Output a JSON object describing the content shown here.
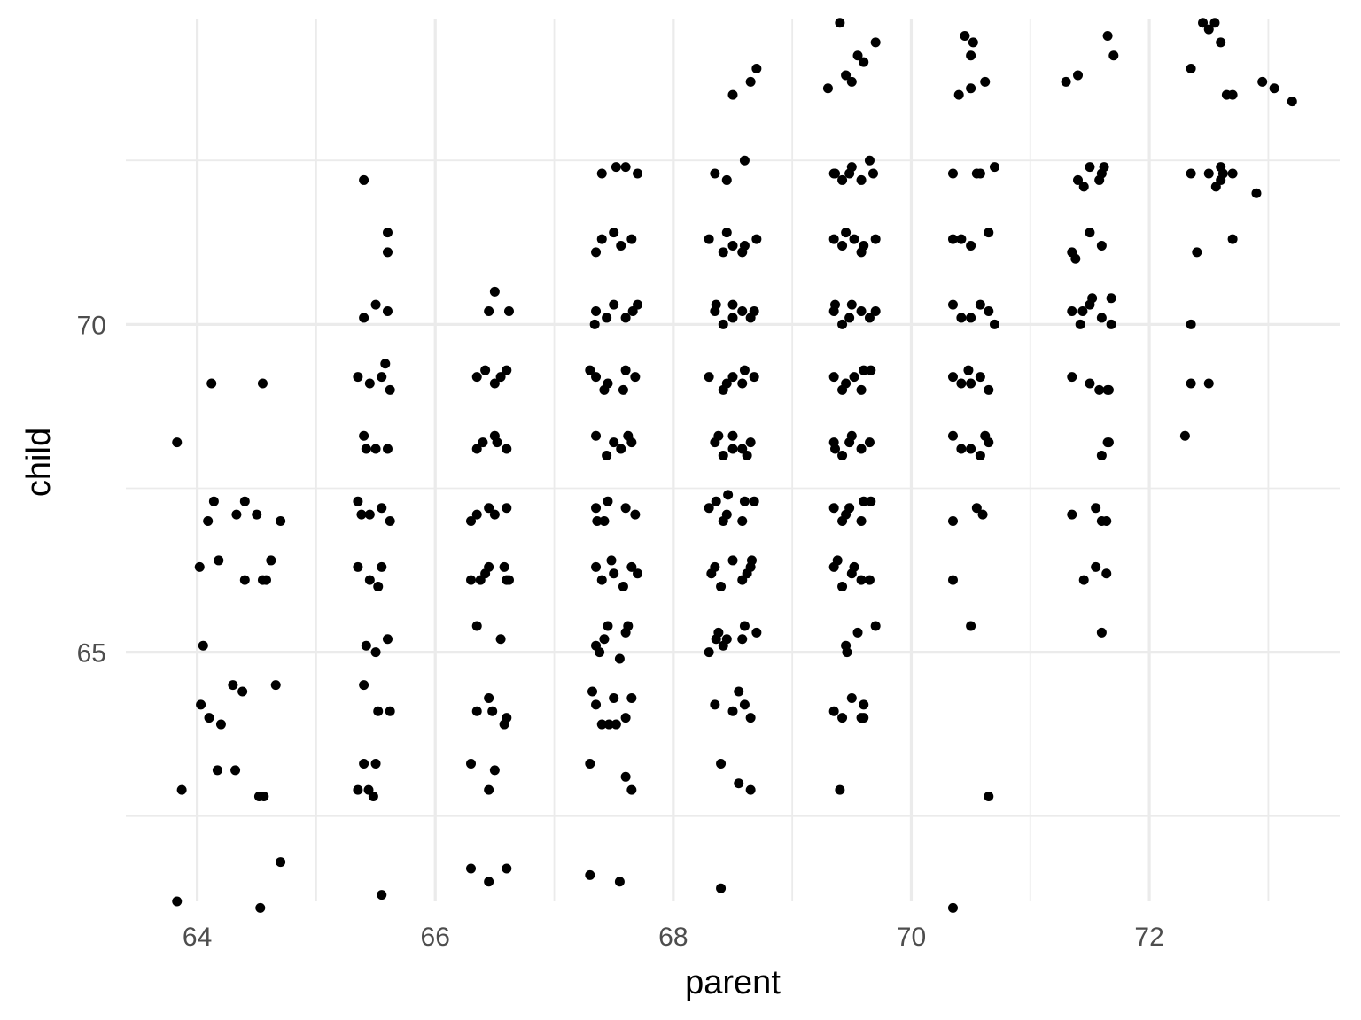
{
  "chart_data": {
    "type": "scatter",
    "title": "",
    "xlabel": "parent",
    "ylabel": "child",
    "xlim": [
      63.4,
      73.6
    ],
    "ylim": [
      61.2,
      74.65
    ],
    "x_ticks": [
      64,
      66,
      68,
      70,
      72
    ],
    "x_tick_labels": [
      "64",
      "66",
      "68",
      "70",
      "72"
    ],
    "x_minor_ticks": [
      65,
      67,
      69,
      71,
      73
    ],
    "y_ticks": [
      65,
      70
    ],
    "y_tick_labels": [
      "65",
      "70"
    ],
    "y_minor_ticks": [
      62.5,
      67.5,
      72.5
    ],
    "grid": true,
    "legend": "none",
    "colors": {
      "point": "#000000",
      "grid": "#ebebeb",
      "background": "#ffffff"
    },
    "points": [
      [
        63.83,
        61.2
      ],
      [
        63.83,
        68.2
      ],
      [
        63.87,
        62.9
      ],
      [
        64.05,
        65.1
      ],
      [
        64.12,
        69.1
      ],
      [
        64.17,
        63.2
      ],
      [
        64.33,
        67.1
      ],
      [
        64.38,
        64.4
      ],
      [
        64.53,
        61.1
      ],
      [
        64.52,
        62.8
      ],
      [
        64.55,
        69.1
      ],
      [
        64.7,
        61.8
      ],
      [
        64.7,
        67.0
      ],
      [
        64.66,
        64.5
      ],
      [
        64.58,
        66.1
      ],
      [
        64.62,
        66.4
      ],
      [
        64.02,
        66.3
      ],
      [
        64.1,
        64.0
      ],
      [
        64.2,
        63.9
      ],
      [
        64.14,
        67.3
      ],
      [
        64.4,
        67.3
      ],
      [
        64.3,
        64.5
      ],
      [
        64.4,
        66.1
      ],
      [
        64.56,
        62.8
      ],
      [
        64.03,
        64.2
      ],
      [
        64.18,
        66.4
      ],
      [
        64.32,
        63.2
      ],
      [
        64.09,
        67.0
      ],
      [
        64.5,
        67.1
      ],
      [
        64.55,
        66.1
      ],
      [
        65.35,
        62.9
      ],
      [
        65.4,
        63.3
      ],
      [
        65.5,
        63.3
      ],
      [
        65.55,
        61.3
      ],
      [
        65.4,
        64.5
      ],
      [
        65.5,
        65.0
      ],
      [
        65.6,
        65.2
      ],
      [
        65.35,
        66.3
      ],
      [
        65.45,
        66.1
      ],
      [
        65.55,
        66.3
      ],
      [
        65.35,
        67.3
      ],
      [
        65.45,
        67.1
      ],
      [
        65.55,
        67.2
      ],
      [
        65.4,
        68.3
      ],
      [
        65.5,
        68.1
      ],
      [
        65.6,
        68.1
      ],
      [
        65.35,
        69.2
      ],
      [
        65.45,
        69.1
      ],
      [
        65.55,
        69.2
      ],
      [
        65.4,
        70.1
      ],
      [
        65.5,
        70.3
      ],
      [
        65.6,
        70.2
      ],
      [
        65.4,
        72.2
      ],
      [
        65.6,
        71.4
      ],
      [
        65.6,
        71.1
      ],
      [
        65.48,
        62.8
      ],
      [
        65.42,
        65.1
      ],
      [
        65.52,
        64.1
      ],
      [
        65.62,
        64.1
      ],
      [
        65.38,
        67.1
      ],
      [
        65.62,
        67.0
      ],
      [
        65.42,
        68.1
      ],
      [
        65.62,
        69.0
      ],
      [
        65.52,
        66.0
      ],
      [
        65.44,
        62.9
      ],
      [
        65.58,
        69.4
      ],
      [
        66.3,
        61.7
      ],
      [
        66.45,
        61.5
      ],
      [
        66.6,
        61.7
      ],
      [
        66.3,
        63.3
      ],
      [
        66.45,
        62.9
      ],
      [
        66.5,
        63.2
      ],
      [
        66.35,
        64.1
      ],
      [
        66.45,
        64.3
      ],
      [
        66.6,
        64.0
      ],
      [
        66.35,
        65.4
      ],
      [
        66.55,
        65.2
      ],
      [
        66.3,
        66.1
      ],
      [
        66.45,
        66.3
      ],
      [
        66.6,
        66.1
      ],
      [
        66.35,
        67.1
      ],
      [
        66.45,
        67.2
      ],
      [
        66.6,
        67.2
      ],
      [
        66.35,
        68.1
      ],
      [
        66.5,
        68.3
      ],
      [
        66.6,
        68.1
      ],
      [
        66.35,
        69.2
      ],
      [
        66.5,
        69.1
      ],
      [
        66.6,
        69.3
      ],
      [
        66.45,
        70.2
      ],
      [
        66.5,
        70.5
      ],
      [
        66.62,
        70.2
      ],
      [
        66.3,
        67.0
      ],
      [
        66.5,
        67.1
      ],
      [
        66.4,
        68.2
      ],
      [
        66.55,
        69.2
      ],
      [
        66.42,
        66.2
      ],
      [
        66.58,
        66.3
      ],
      [
        66.48,
        64.1
      ],
      [
        66.58,
        63.9
      ],
      [
        66.38,
        66.1
      ],
      [
        66.62,
        66.1
      ],
      [
        66.52,
        68.2
      ],
      [
        66.42,
        69.3
      ],
      [
        67.3,
        61.6
      ],
      [
        67.55,
        61.5
      ],
      [
        67.3,
        63.3
      ],
      [
        67.6,
        63.1
      ],
      [
        67.65,
        62.9
      ],
      [
        67.35,
        64.2
      ],
      [
        67.5,
        64.3
      ],
      [
        67.6,
        64.0
      ],
      [
        67.35,
        65.1
      ],
      [
        67.45,
        65.4
      ],
      [
        67.6,
        65.3
      ],
      [
        67.35,
        66.3
      ],
      [
        67.5,
        66.2
      ],
      [
        67.65,
        66.3
      ],
      [
        67.35,
        67.2
      ],
      [
        67.45,
        67.3
      ],
      [
        67.6,
        67.2
      ],
      [
        67.35,
        68.3
      ],
      [
        67.5,
        68.2
      ],
      [
        67.65,
        68.2
      ],
      [
        67.35,
        69.2
      ],
      [
        67.45,
        69.1
      ],
      [
        67.6,
        69.3
      ],
      [
        67.35,
        70.2
      ],
      [
        67.5,
        70.3
      ],
      [
        67.6,
        70.1
      ],
      [
        67.35,
        71.1
      ],
      [
        67.5,
        71.4
      ],
      [
        67.65,
        71.3
      ],
      [
        67.4,
        72.3
      ],
      [
        67.6,
        72.4
      ],
      [
        67.7,
        72.3
      ],
      [
        67.4,
        63.9
      ],
      [
        67.52,
        63.9
      ],
      [
        67.65,
        64.3
      ],
      [
        67.42,
        65.2
      ],
      [
        67.55,
        64.9
      ],
      [
        67.4,
        66.1
      ],
      [
        67.58,
        66.0
      ],
      [
        67.42,
        67.0
      ],
      [
        67.68,
        67.1
      ],
      [
        67.44,
        68.0
      ],
      [
        67.56,
        68.1
      ],
      [
        67.42,
        69.0
      ],
      [
        67.58,
        69.0
      ],
      [
        67.44,
        70.1
      ],
      [
        67.66,
        70.2
      ],
      [
        67.4,
        71.3
      ],
      [
        67.56,
        71.2
      ],
      [
        67.52,
        72.4
      ],
      [
        67.32,
        64.4
      ],
      [
        67.48,
        66.4
      ],
      [
        67.36,
        67.0
      ],
      [
        67.62,
        68.3
      ],
      [
        67.3,
        69.3
      ],
      [
        67.68,
        69.2
      ],
      [
        67.34,
        70.0
      ],
      [
        67.7,
        70.3
      ],
      [
        67.38,
        65.0
      ],
      [
        67.62,
        65.4
      ],
      [
        67.46,
        63.9
      ],
      [
        67.7,
        66.2
      ],
      [
        68.3,
        65.0
      ],
      [
        68.45,
        65.2
      ],
      [
        68.6,
        65.4
      ],
      [
        68.35,
        66.3
      ],
      [
        68.5,
        66.4
      ],
      [
        68.65,
        66.3
      ],
      [
        68.3,
        67.2
      ],
      [
        68.45,
        67.1
      ],
      [
        68.6,
        67.3
      ],
      [
        68.35,
        68.2
      ],
      [
        68.5,
        68.3
      ],
      [
        68.65,
        68.2
      ],
      [
        68.3,
        69.2
      ],
      [
        68.45,
        69.1
      ],
      [
        68.6,
        69.3
      ],
      [
        68.35,
        70.2
      ],
      [
        68.5,
        70.3
      ],
      [
        68.65,
        70.1
      ],
      [
        68.3,
        71.3
      ],
      [
        68.45,
        71.4
      ],
      [
        68.6,
        71.2
      ],
      [
        68.35,
        72.3
      ],
      [
        68.45,
        72.2
      ],
      [
        68.6,
        72.5
      ],
      [
        68.5,
        73.5
      ],
      [
        68.65,
        73.7
      ],
      [
        68.7,
        73.9
      ],
      [
        68.4,
        63.3
      ],
      [
        68.55,
        63.0
      ],
      [
        68.65,
        62.9
      ],
      [
        68.4,
        61.4
      ],
      [
        68.35,
        64.2
      ],
      [
        68.5,
        64.1
      ],
      [
        68.65,
        64.0
      ],
      [
        68.42,
        65.1
      ],
      [
        68.58,
        65.2
      ],
      [
        68.4,
        66.0
      ],
      [
        68.58,
        66.1
      ],
      [
        68.42,
        67.0
      ],
      [
        68.58,
        67.0
      ],
      [
        68.42,
        68.0
      ],
      [
        68.58,
        68.1
      ],
      [
        68.42,
        69.0
      ],
      [
        68.58,
        69.1
      ],
      [
        68.42,
        70.0
      ],
      [
        68.58,
        70.2
      ],
      [
        68.42,
        71.1
      ],
      [
        68.58,
        71.1
      ],
      [
        68.55,
        64.4
      ],
      [
        68.7,
        65.3
      ],
      [
        68.38,
        65.3
      ],
      [
        68.62,
        66.2
      ],
      [
        68.36,
        67.3
      ],
      [
        68.68,
        67.3
      ],
      [
        68.62,
        68.0
      ],
      [
        68.38,
        68.3
      ],
      [
        68.68,
        69.2
      ],
      [
        68.36,
        70.3
      ],
      [
        68.68,
        70.2
      ],
      [
        68.7,
        71.3
      ],
      [
        68.36,
        65.2
      ],
      [
        68.6,
        64.2
      ],
      [
        68.32,
        66.2
      ],
      [
        68.66,
        66.4
      ],
      [
        68.46,
        67.4
      ],
      [
        68.5,
        68.1
      ],
      [
        68.5,
        69.2
      ],
      [
        68.5,
        70.1
      ],
      [
        68.5,
        71.2
      ],
      [
        69.4,
        62.9
      ],
      [
        69.35,
        64.1
      ],
      [
        69.5,
        64.3
      ],
      [
        69.6,
        64.0
      ],
      [
        69.45,
        65.1
      ],
      [
        69.55,
        65.3
      ],
      [
        69.7,
        65.4
      ],
      [
        69.35,
        66.3
      ],
      [
        69.5,
        66.2
      ],
      [
        69.65,
        66.1
      ],
      [
        69.35,
        67.2
      ],
      [
        69.45,
        67.1
      ],
      [
        69.6,
        67.3
      ],
      [
        69.35,
        68.2
      ],
      [
        69.5,
        68.3
      ],
      [
        69.65,
        68.2
      ],
      [
        69.35,
        69.2
      ],
      [
        69.45,
        69.1
      ],
      [
        69.6,
        69.3
      ],
      [
        69.35,
        70.2
      ],
      [
        69.5,
        70.3
      ],
      [
        69.65,
        70.1
      ],
      [
        69.35,
        71.3
      ],
      [
        69.45,
        71.4
      ],
      [
        69.6,
        71.2
      ],
      [
        69.35,
        72.3
      ],
      [
        69.5,
        72.4
      ],
      [
        69.65,
        72.5
      ],
      [
        69.3,
        73.6
      ],
      [
        69.45,
        73.8
      ],
      [
        69.55,
        74.1
      ],
      [
        69.7,
        74.3
      ],
      [
        69.4,
        74.6
      ],
      [
        69.42,
        64.0
      ],
      [
        69.58,
        64.0
      ],
      [
        69.46,
        65.0
      ],
      [
        69.42,
        66.0
      ],
      [
        69.58,
        66.1
      ],
      [
        69.42,
        67.0
      ],
      [
        69.58,
        67.0
      ],
      [
        69.42,
        68.0
      ],
      [
        69.58,
        68.1
      ],
      [
        69.42,
        69.0
      ],
      [
        69.58,
        69.0
      ],
      [
        69.42,
        70.0
      ],
      [
        69.58,
        70.2
      ],
      [
        69.42,
        71.2
      ],
      [
        69.58,
        71.1
      ],
      [
        69.42,
        72.2
      ],
      [
        69.58,
        72.2
      ],
      [
        69.5,
        73.7
      ],
      [
        69.6,
        74.0
      ],
      [
        69.68,
        72.3
      ],
      [
        69.38,
        66.4
      ],
      [
        69.66,
        67.3
      ],
      [
        69.36,
        68.1
      ],
      [
        69.66,
        69.3
      ],
      [
        69.36,
        70.3
      ],
      [
        69.7,
        70.2
      ],
      [
        69.7,
        71.3
      ],
      [
        69.36,
        72.3
      ],
      [
        69.6,
        64.2
      ],
      [
        69.52,
        66.3
      ],
      [
        69.48,
        67.2
      ],
      [
        69.48,
        68.2
      ],
      [
        69.52,
        69.2
      ],
      [
        69.48,
        70.1
      ],
      [
        69.52,
        71.3
      ],
      [
        69.48,
        72.3
      ],
      [
        70.35,
        61.1
      ],
      [
        70.65,
        62.8
      ],
      [
        70.5,
        65.4
      ],
      [
        70.35,
        66.1
      ],
      [
        70.35,
        67.0
      ],
      [
        70.55,
        67.2
      ],
      [
        70.35,
        68.3
      ],
      [
        70.5,
        68.1
      ],
      [
        70.65,
        68.2
      ],
      [
        70.35,
        69.2
      ],
      [
        70.5,
        69.1
      ],
      [
        70.65,
        69.0
      ],
      [
        70.35,
        70.3
      ],
      [
        70.5,
        70.1
      ],
      [
        70.65,
        70.2
      ],
      [
        70.35,
        71.3
      ],
      [
        70.5,
        71.2
      ],
      [
        70.65,
        71.4
      ],
      [
        70.35,
        72.3
      ],
      [
        70.55,
        72.3
      ],
      [
        70.7,
        72.4
      ],
      [
        70.4,
        73.5
      ],
      [
        70.5,
        73.6
      ],
      [
        70.45,
        74.4
      ],
      [
        70.52,
        74.3
      ],
      [
        70.6,
        67.1
      ],
      [
        70.42,
        68.1
      ],
      [
        70.58,
        68.0
      ],
      [
        70.42,
        69.1
      ],
      [
        70.58,
        69.2
      ],
      [
        70.42,
        70.1
      ],
      [
        70.58,
        70.3
      ],
      [
        70.42,
        71.3
      ],
      [
        70.58,
        72.3
      ],
      [
        70.5,
        74.1
      ],
      [
        70.62,
        73.7
      ],
      [
        70.7,
        70.0
      ],
      [
        70.48,
        69.3
      ],
      [
        70.62,
        68.3
      ],
      [
        71.35,
        71.1
      ],
      [
        71.5,
        71.4
      ],
      [
        71.6,
        71.2
      ],
      [
        71.4,
        72.2
      ],
      [
        71.5,
        72.4
      ],
      [
        71.6,
        72.3
      ],
      [
        71.3,
        73.7
      ],
      [
        71.4,
        73.8
      ],
      [
        71.65,
        74.4
      ],
      [
        71.7,
        74.1
      ],
      [
        71.35,
        70.2
      ],
      [
        71.5,
        70.3
      ],
      [
        71.6,
        70.1
      ],
      [
        71.35,
        69.2
      ],
      [
        71.5,
        69.1
      ],
      [
        71.65,
        69.0
      ],
      [
        71.65,
        68.2
      ],
      [
        71.6,
        68.0
      ],
      [
        71.55,
        67.2
      ],
      [
        71.6,
        67.0
      ],
      [
        71.55,
        66.3
      ],
      [
        71.45,
        66.1
      ],
      [
        71.6,
        65.3
      ],
      [
        71.35,
        67.1
      ],
      [
        71.45,
        72.1
      ],
      [
        71.58,
        72.2
      ],
      [
        71.42,
        70.0
      ],
      [
        71.68,
        70.4
      ],
      [
        71.38,
        71.0
      ],
      [
        71.68,
        70.0
      ],
      [
        71.62,
        72.4
      ],
      [
        71.44,
        70.2
      ],
      [
        71.52,
        70.4
      ],
      [
        71.58,
        69.0
      ],
      [
        71.66,
        69.0
      ],
      [
        71.64,
        67.0
      ],
      [
        71.66,
        68.2
      ],
      [
        71.64,
        66.2
      ],
      [
        72.3,
        68.3
      ],
      [
        72.35,
        69.1
      ],
      [
        72.5,
        69.1
      ],
      [
        72.35,
        70.0
      ],
      [
        72.4,
        71.1
      ],
      [
        72.7,
        71.3
      ],
      [
        72.35,
        72.3
      ],
      [
        72.5,
        72.3
      ],
      [
        72.6,
        72.4
      ],
      [
        72.7,
        72.3
      ],
      [
        72.6,
        72.2
      ],
      [
        72.9,
        72.0
      ],
      [
        72.35,
        73.9
      ],
      [
        72.5,
        74.5
      ],
      [
        72.55,
        74.6
      ],
      [
        72.6,
        74.3
      ],
      [
        72.65,
        73.5
      ],
      [
        72.95,
        73.7
      ],
      [
        73.05,
        73.6
      ],
      [
        73.2,
        73.4
      ],
      [
        72.45,
        74.6
      ],
      [
        72.62,
        72.3
      ],
      [
        72.7,
        73.5
      ],
      [
        72.56,
        72.1
      ]
    ]
  }
}
